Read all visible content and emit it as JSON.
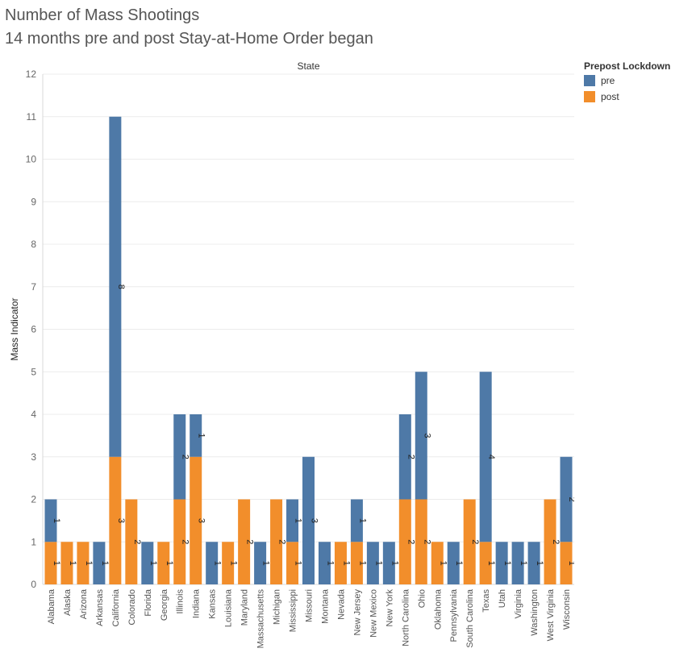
{
  "header": {
    "title": "Number of Mass Shootings",
    "subtitle": "14 months pre and post Stay-at-Home Order began"
  },
  "legend": {
    "title": "Prepost Lockdown",
    "items": [
      {
        "label": "pre",
        "color": "#4e79a7"
      },
      {
        "label": "post",
        "color": "#f28e2b"
      }
    ]
  },
  "chart_data": {
    "type": "bar",
    "stacked": true,
    "title": "Number of Mass Shootings",
    "subtitle": "14 months pre and post Stay-at-Home Order began",
    "column_header": "State",
    "ylabel": "Mass Indicator",
    "ylim": [
      0,
      12
    ],
    "yticks": [
      0,
      1,
      2,
      3,
      4,
      5,
      6,
      7,
      8,
      9,
      10,
      11,
      12
    ],
    "grid": true,
    "legend_position": "right",
    "categories": [
      "Alabama",
      "Alaska",
      "Arizona",
      "Arkansas",
      "California",
      "Colorado",
      "Florida",
      "Georgia",
      "Illinois",
      "Indiana",
      "Kansas",
      "Louisiana",
      "Maryland",
      "Massachusetts",
      "Michigan",
      "Mississippi",
      "Missouri",
      "Montana",
      "Nevada",
      "New Jersey",
      "New Mexico",
      "New York",
      "North Carolina",
      "Ohio",
      "Oklahoma",
      "Pennsylvania",
      "South Carolina",
      "Texas",
      "Utah",
      "Virginia",
      "Washington",
      "West Virginia",
      "Wisconsin"
    ],
    "series": [
      {
        "name": "post",
        "color": "#f28e2b",
        "values": [
          1,
          1,
          1,
          0,
          3,
          2,
          0,
          1,
          2,
          3,
          0,
          1,
          2,
          0,
          2,
          1,
          0,
          0,
          1,
          1,
          0,
          0,
          2,
          2,
          1,
          0,
          2,
          1,
          0,
          0,
          0,
          2,
          1
        ]
      },
      {
        "name": "pre",
        "color": "#4e79a7",
        "values": [
          1,
          0,
          0,
          1,
          8,
          0,
          1,
          0,
          2,
          1,
          1,
          0,
          0,
          1,
          0,
          1,
          3,
          1,
          0,
          1,
          1,
          1,
          2,
          3,
          0,
          1,
          0,
          4,
          1,
          1,
          1,
          0,
          2
        ]
      }
    ]
  }
}
